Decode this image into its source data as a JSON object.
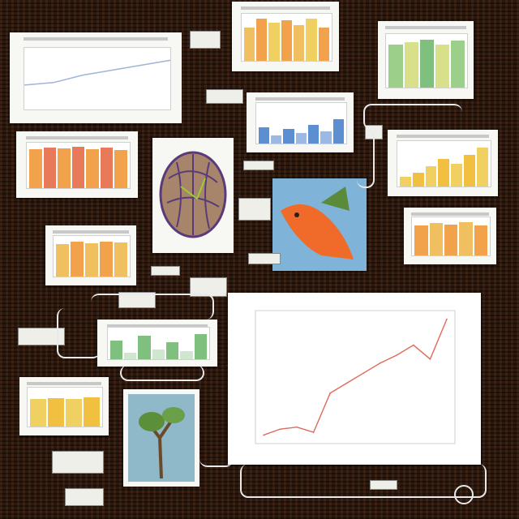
{
  "chart_data": {
    "type": "line",
    "title": "",
    "xlabel": "",
    "ylabel": "",
    "x": [
      0,
      1,
      2,
      3,
      4,
      5,
      6,
      7,
      8,
      9,
      10,
      11
    ],
    "series": [
      {
        "values": [
          0.5,
          2.0,
          2.5,
          1.2,
          11.0,
          13.5,
          16.0,
          18.5,
          20.5,
          23.0,
          19.5,
          29.5
        ]
      }
    ],
    "ylim": [
      0,
      30
    ],
    "xlim": [
      0,
      11
    ],
    "grid": false,
    "line_color": "#e06a5a"
  },
  "colors": {
    "background": "#2a170d",
    "card": "#f7f7f4",
    "bar_orange": "#f2a24a",
    "bar_yellow": "#f0d060",
    "bar_green": "#7fc07f",
    "bar_blue": "#5b8fd1",
    "line_red": "#e06a5a"
  }
}
